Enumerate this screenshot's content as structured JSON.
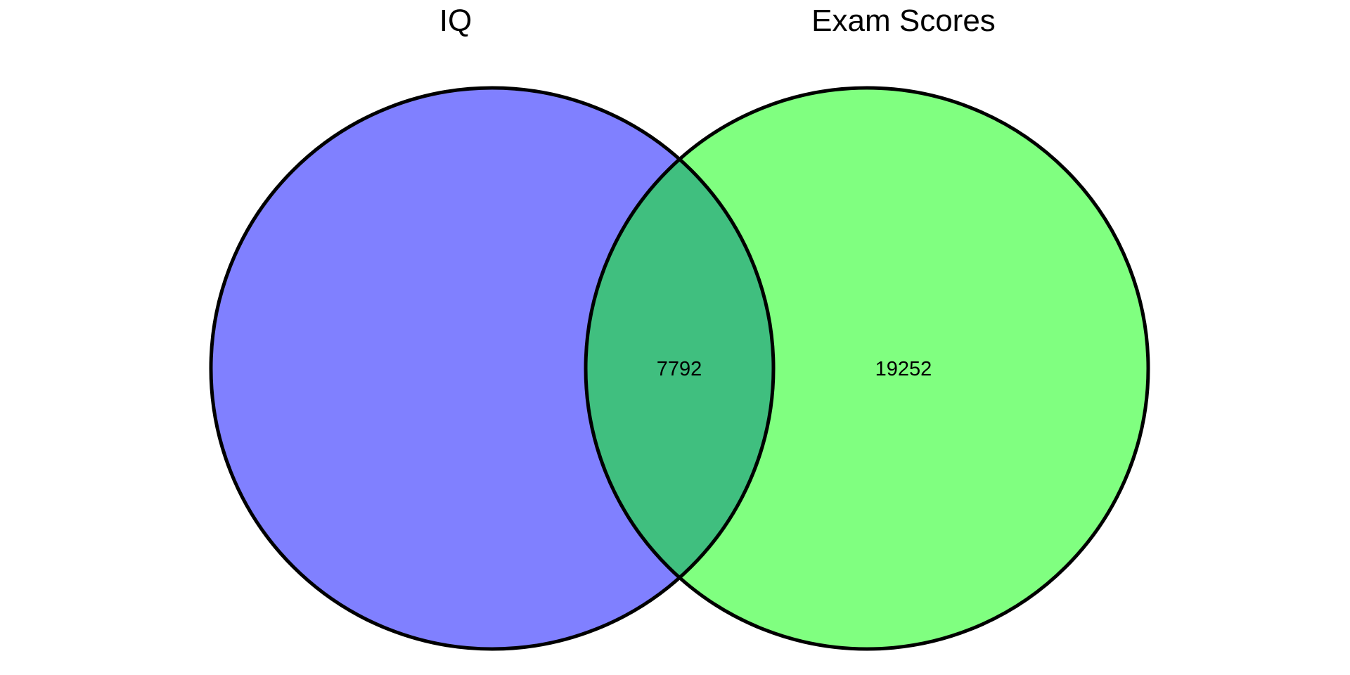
{
  "diagram": {
    "type": "venn",
    "sets": [
      {
        "name": "IQ",
        "color": "#8080ff"
      },
      {
        "name": "Exam Scores",
        "color": "#80ff80"
      }
    ],
    "intersection_color": "#40bf7f",
    "outline_color": "#000000",
    "region_counts": {
      "iq_only": "",
      "intersection": "7792",
      "exam_scores_only": "19252"
    }
  }
}
